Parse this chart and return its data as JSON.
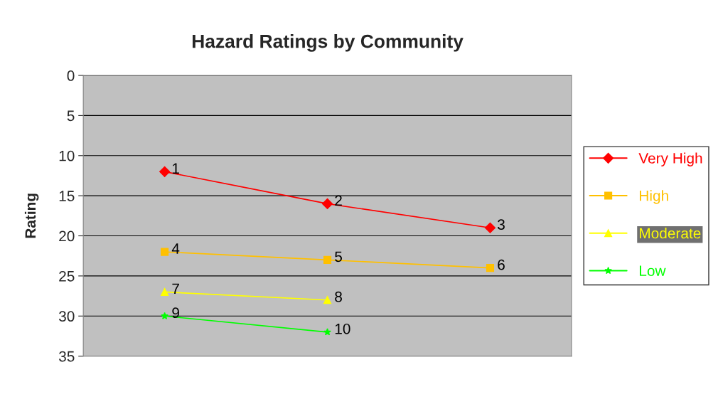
{
  "chart_data": {
    "type": "line",
    "title": "Hazard Ratings by Community",
    "ylabel": "Rating",
    "categories": [
      null,
      null,
      null
    ],
    "series": [
      {
        "name": "Very High",
        "color": "#ff0000",
        "marker": "diamond",
        "values": [
          12,
          16,
          19
        ]
      },
      {
        "name": "High",
        "color": "#ffc000",
        "marker": "square",
        "values": [
          22,
          23,
          24
        ]
      },
      {
        "name": "Moderate",
        "color": "#ffff00",
        "marker": "triangle",
        "values": [
          27,
          28,
          null
        ]
      },
      {
        "name": "Low",
        "color": "#00ff00",
        "marker": "star",
        "values": [
          30,
          32,
          null
        ]
      }
    ],
    "annotations": [
      "1",
      "2",
      "3",
      "4",
      "5",
      "6",
      "7",
      "8",
      "9",
      "10"
    ],
    "ylim": [
      35,
      0
    ],
    "yticks": [
      0,
      5,
      10,
      15,
      20,
      25,
      30,
      35
    ],
    "grid": "y",
    "legend": "right"
  }
}
